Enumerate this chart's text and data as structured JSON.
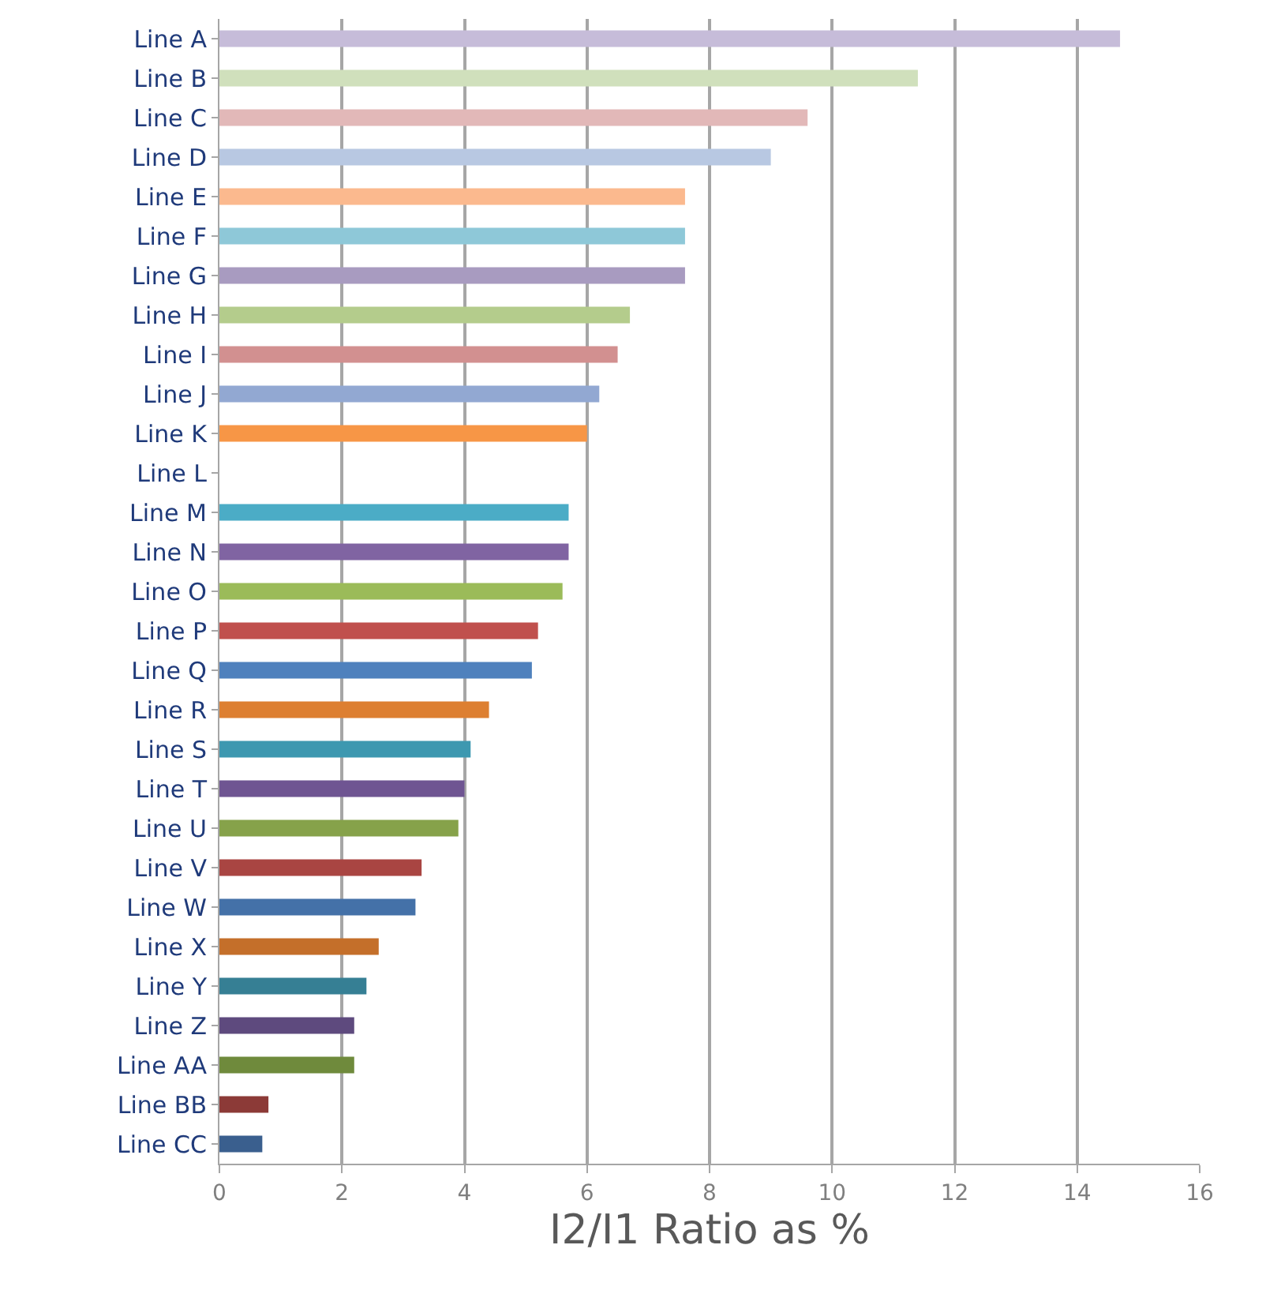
{
  "chart_data": {
    "type": "bar",
    "orientation": "horizontal",
    "xlabel": "I2/I1 Ratio as %",
    "categories": [
      "Line A",
      "Line B",
      "Line C",
      "Line D",
      "Line E",
      "Line F",
      "Line G",
      "Line H",
      "Line I",
      "Line J",
      "Line K",
      "Line L",
      "Line M",
      "Line N",
      "Line O",
      "Line P",
      "Line Q",
      "Line R",
      "Line S",
      "Line T",
      "Line U",
      "Line V",
      "Line W",
      "Line X",
      "Line Y",
      "Line Z",
      "Line AA",
      "Line BB",
      "Line CC"
    ],
    "values": [
      14.7,
      11.4,
      9.6,
      9.0,
      7.6,
      7.6,
      7.6,
      6.7,
      6.5,
      6.2,
      6.0,
      null,
      5.7,
      5.7,
      5.6,
      5.2,
      5.1,
      4.4,
      4.1,
      4.0,
      3.9,
      3.3,
      3.2,
      2.6,
      2.4,
      2.2,
      2.2,
      0.8,
      0.7
    ],
    "colors": [
      "#c6bcd9",
      "#d0e0bc",
      "#e2b8b8",
      "#b8c8e2",
      "#fbb98e",
      "#8ec8d8",
      "#a89bc0",
      "#b4cc8c",
      "#d29090",
      "#92a8d2",
      "#f79646",
      null,
      "#4bacc6",
      "#8064a2",
      "#9bbb59",
      "#c0504d",
      "#4f81bd",
      "#dd7f31",
      "#3d98b0",
      "#6f5592",
      "#86a24a",
      "#a94542",
      "#4471a8",
      "#c46f2a",
      "#367f94",
      "#5e4a7e",
      "#6f8a3c",
      "#8c3a37",
      "#3a5f8e"
    ],
    "xlim": [
      0,
      16
    ],
    "xticks": [
      0,
      2,
      4,
      6,
      8,
      10,
      12,
      14,
      16
    ],
    "grid": "x"
  }
}
